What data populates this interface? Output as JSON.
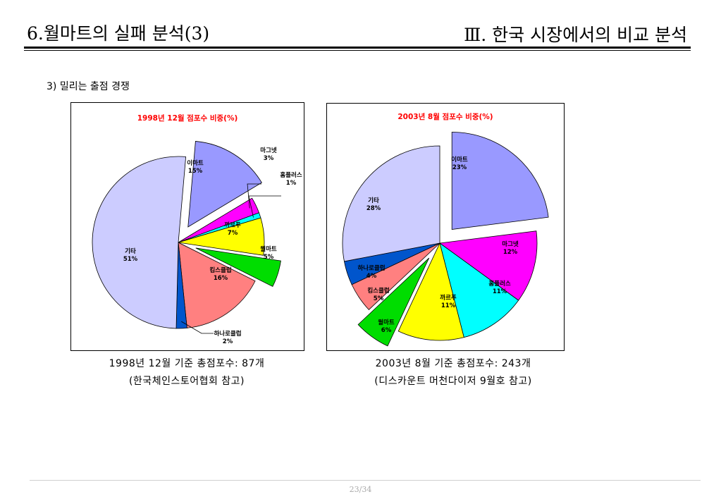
{
  "header": {
    "title_left": "6.월마트의 실패 분석(3)",
    "title_right": "Ⅲ. 한국 시장에서의 비교 분석"
  },
  "section": {
    "subheading": "3) 밀리는 출점 경쟁"
  },
  "captions": {
    "chart1_line1": "1998년  12월  기준  총점포수:  87개",
    "chart1_line2": "(한국체인스토어협회  참고)",
    "chart2_line1": "2003년  8월  기준  총점포수:  243개",
    "chart2_line2": "(디스카운트  머천다이저  9월호  참고)"
  },
  "footer": {
    "page": "23/34"
  },
  "chart_data": [
    {
      "type": "pie",
      "title": "1998년 12월 점포수 비중(%)",
      "slices": [
        {
          "name": "이마트",
          "value": 15,
          "label": "15%",
          "color": "#9999ff",
          "exploded": true
        },
        {
          "name": "마그넷",
          "value": 3,
          "label": "3%",
          "color": "#ff00ff",
          "exploded": false
        },
        {
          "name": "홈플러스",
          "value": 1,
          "label": "1%",
          "color": "#00ffff",
          "exploded": false
        },
        {
          "name": "까르푸",
          "value": 7,
          "label": "7%",
          "color": "#ffff00",
          "exploded": false
        },
        {
          "name": "월마트",
          "value": 5,
          "label": "5%",
          "color": "#00dd00",
          "exploded": true
        },
        {
          "name": "킴스클럽",
          "value": 16,
          "label": "16%",
          "color": "#ff8080",
          "exploded": false
        },
        {
          "name": "하나로클럽",
          "value": 2,
          "label": "2%",
          "color": "#0055cc",
          "exploded": false
        },
        {
          "name": "기타",
          "value": 51,
          "label": "51%",
          "color": "#ccccff",
          "exploded": false
        }
      ]
    },
    {
      "type": "pie",
      "title": "2003년 8월 점포수 비중(%)",
      "slices": [
        {
          "name": "이마트",
          "value": 23,
          "label": "23%",
          "color": "#9999ff",
          "exploded": true
        },
        {
          "name": "마그넷",
          "value": 12,
          "label": "12%",
          "color": "#ff00ff",
          "exploded": false
        },
        {
          "name": "홈플러스",
          "value": 11,
          "label": "11%",
          "color": "#00ffff",
          "exploded": false
        },
        {
          "name": "까르푸",
          "value": 11,
          "label": "11%",
          "color": "#ffff00",
          "exploded": false
        },
        {
          "name": "월마트",
          "value": 6,
          "label": "6%",
          "color": "#00dd00",
          "exploded": true
        },
        {
          "name": "킴스클럽",
          "value": 5,
          "label": "5%",
          "color": "#ff8080",
          "exploded": false
        },
        {
          "name": "하나로클럽",
          "value": 4,
          "label": "4%",
          "color": "#0055cc",
          "exploded": false
        },
        {
          "name": "기타",
          "value": 28,
          "label": "28%",
          "color": "#ccccff",
          "exploded": false
        }
      ]
    }
  ]
}
